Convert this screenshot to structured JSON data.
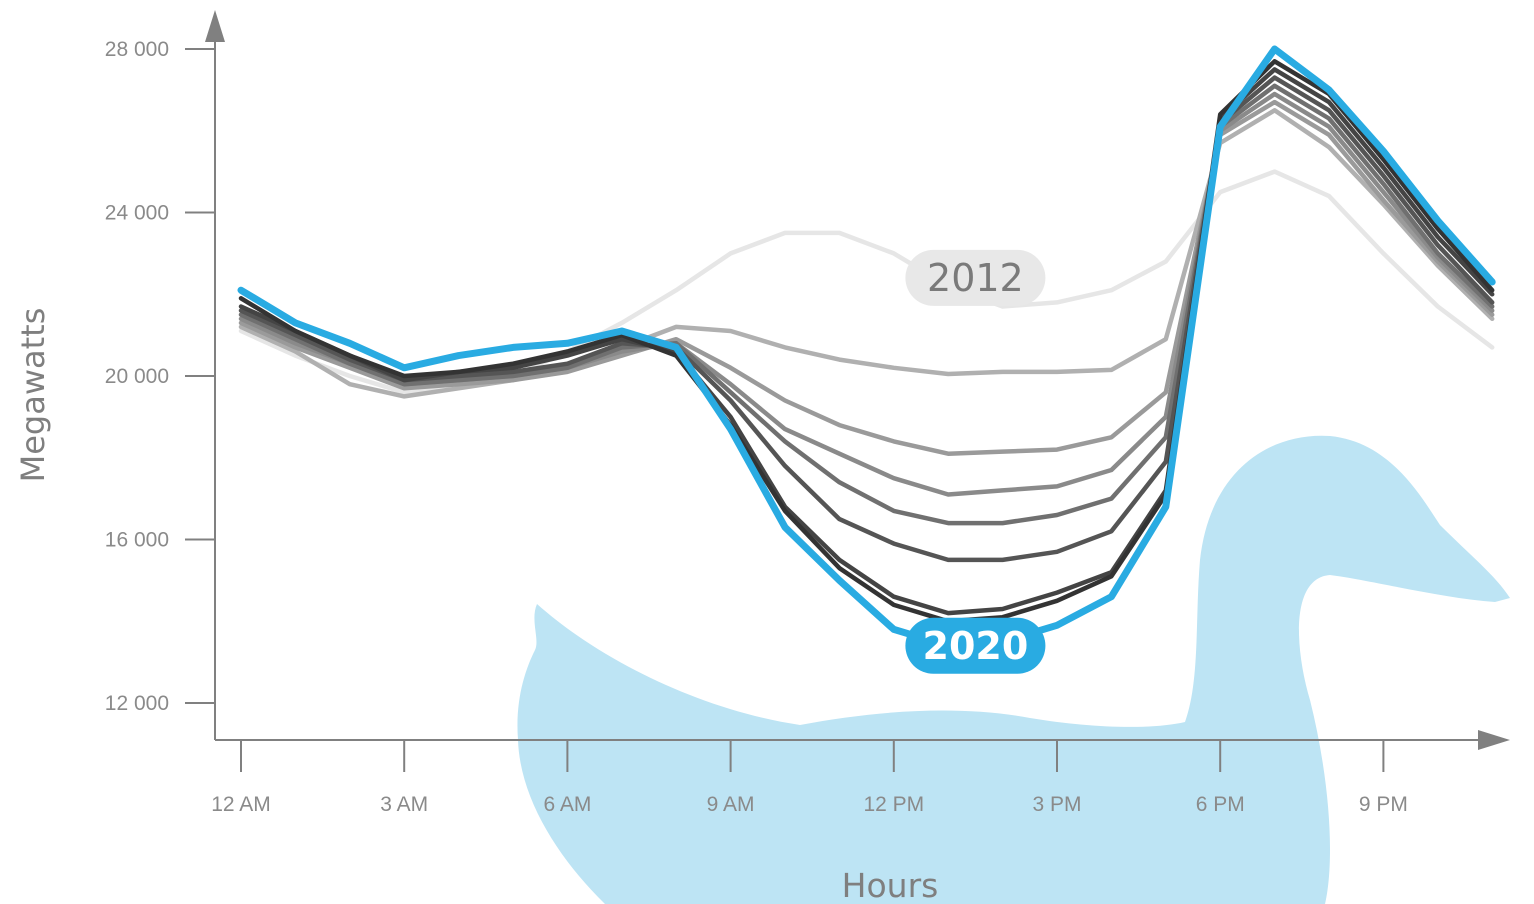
{
  "chart_data": {
    "type": "line",
    "xlabel": "Hours",
    "ylabel": "Megawatts",
    "x": [
      0,
      1,
      2,
      3,
      4,
      5,
      6,
      7,
      8,
      9,
      10,
      11,
      12,
      13,
      14,
      15,
      16,
      17,
      18,
      19,
      20,
      21,
      22,
      23
    ],
    "xticks": [
      {
        "x": 0,
        "label": "12 AM"
      },
      {
        "x": 3,
        "label": "3 AM"
      },
      {
        "x": 6,
        "label": "6 AM"
      },
      {
        "x": 9,
        "label": "9 AM"
      },
      {
        "x": 12,
        "label": "12 PM"
      },
      {
        "x": 15,
        "label": "3 PM"
      },
      {
        "x": 18,
        "label": "6 PM"
      },
      {
        "x": 21,
        "label": "9 PM"
      }
    ],
    "yticks": [
      {
        "y": 12000,
        "label": "12 000"
      },
      {
        "y": 16000,
        "label": "16 000"
      },
      {
        "y": 20000,
        "label": "20 000"
      },
      {
        "y": 24000,
        "label": "24 000"
      },
      {
        "y": 28000,
        "label": "28 000"
      }
    ],
    "ylim": [
      11100,
      29000
    ],
    "xlim": [
      -0.55,
      24
    ],
    "series": [
      {
        "name": "2012",
        "color": "#e6e6e6",
        "values": [
          21100,
          20500,
          20000,
          19600,
          19800,
          20000,
          20600,
          21300,
          22100,
          23000,
          23500,
          23500,
          23000,
          22200,
          21700,
          21800,
          22100,
          22800,
          24500,
          25000,
          24400,
          23000,
          21700,
          20700
        ]
      },
      {
        "name": "",
        "color": "#b0b0b0",
        "values": [
          21200,
          20600,
          19800,
          19500,
          19700,
          19900,
          20200,
          20700,
          21200,
          21100,
          20700,
          20400,
          20200,
          20050,
          20100,
          20100,
          20150,
          20900,
          25700,
          26500,
          25600,
          24200,
          22700,
          21400
        ]
      },
      {
        "name": "",
        "color": "#9a9a9a",
        "values": [
          21300,
          20700,
          20200,
          19700,
          19800,
          19900,
          20100,
          20500,
          20900,
          20200,
          19400,
          18800,
          18400,
          18100,
          18150,
          18200,
          18500,
          19600,
          25900,
          26700,
          25900,
          24300,
          22800,
          21500
        ]
      },
      {
        "name": "",
        "color": "#8a8a8a",
        "values": [
          21400,
          20800,
          20300,
          19800,
          19900,
          20000,
          20200,
          20600,
          20800,
          19800,
          18700,
          18100,
          17500,
          17100,
          17200,
          17300,
          17700,
          19000,
          26000,
          26900,
          26100,
          24500,
          22900,
          21600
        ]
      },
      {
        "name": "",
        "color": "#707070",
        "values": [
          21500,
          20900,
          20300,
          19800,
          19900,
          20000,
          20200,
          20700,
          20800,
          19600,
          18400,
          17400,
          16700,
          16400,
          16400,
          16600,
          17000,
          18500,
          26100,
          27100,
          26300,
          24700,
          23000,
          21700
        ]
      },
      {
        "name": "",
        "color": "#555555",
        "values": [
          21600,
          21000,
          20400,
          19900,
          20000,
          20100,
          20300,
          20800,
          20700,
          19400,
          17800,
          16500,
          15900,
          15500,
          15500,
          15700,
          16200,
          17900,
          26200,
          27300,
          26500,
          24900,
          23200,
          21800
        ]
      },
      {
        "name": "",
        "color": "#444444",
        "values": [
          21700,
          21100,
          20500,
          19900,
          20100,
          20200,
          20500,
          20900,
          20600,
          19000,
          16800,
          15500,
          14600,
          14200,
          14300,
          14700,
          15200,
          17200,
          26300,
          27500,
          26700,
          25100,
          23400,
          22000
        ]
      },
      {
        "name": "",
        "color": "#333333",
        "values": [
          21900,
          21100,
          20500,
          20000,
          20100,
          20300,
          20600,
          21000,
          20500,
          18800,
          16700,
          15300,
          14400,
          14000,
          14100,
          14500,
          15100,
          17100,
          26400,
          27700,
          26900,
          25300,
          23600,
          22100
        ]
      },
      {
        "name": "2020",
        "color": "#29abe2",
        "values": [
          22100,
          21300,
          20800,
          20200,
          20500,
          20700,
          20800,
          21100,
          20700,
          18700,
          16300,
          15000,
          13800,
          13400,
          13500,
          13900,
          14600,
          16800,
          26100,
          28000,
          27000,
          25500,
          23800,
          22300
        ]
      }
    ],
    "annotations": [
      {
        "text": "2012",
        "x": 13.5,
        "y": 22400
      },
      {
        "text": "2020",
        "x": 13.5,
        "y": 13400
      }
    ]
  },
  "colors": {
    "axis": "#808080",
    "tick_text": "#8a8a8a",
    "duck": "#bde4f4",
    "label_2012_bg": "#e8e8e8",
    "label_2012_text": "#7a7a7a",
    "label_2020_bg": "#29abe2",
    "label_2020_text": "#ffffff"
  }
}
